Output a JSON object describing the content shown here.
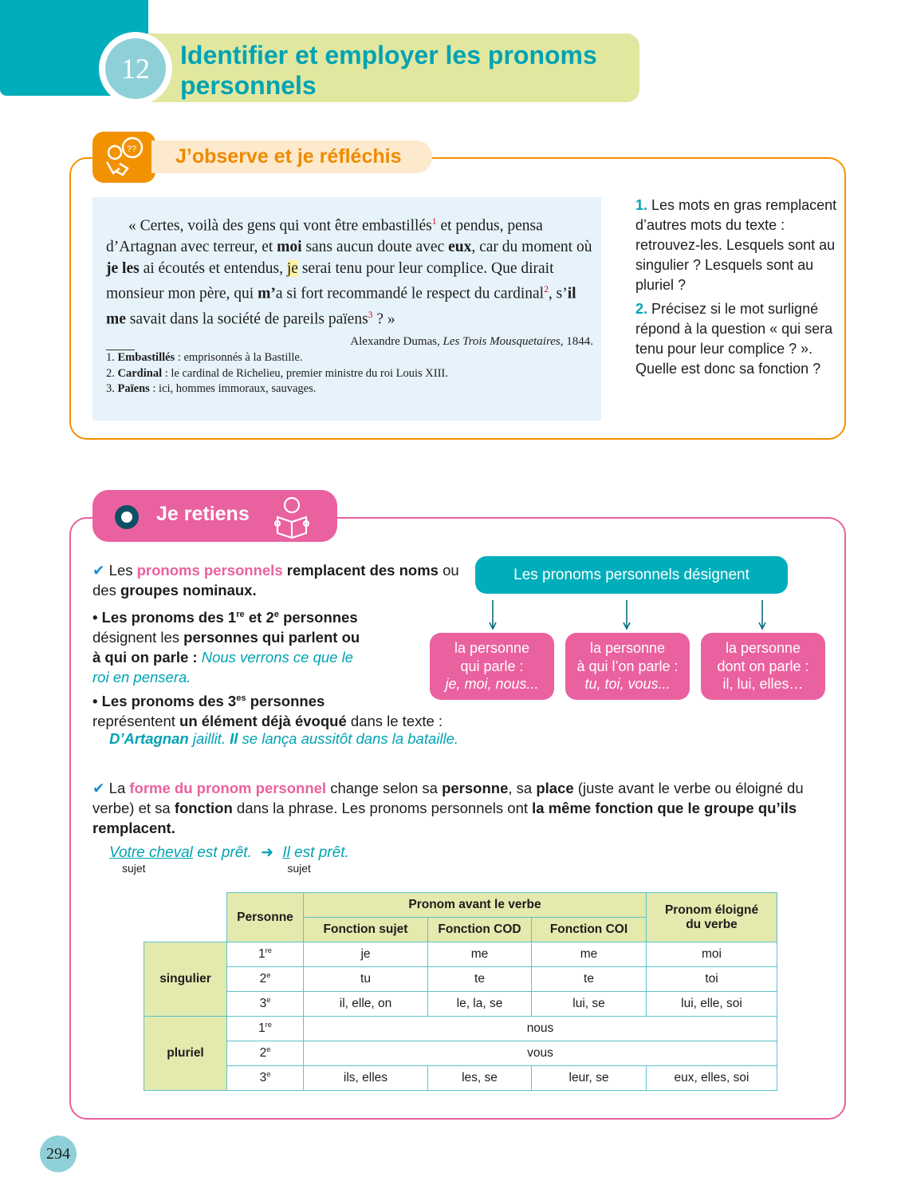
{
  "header": {
    "chapter_number": "12",
    "title": "Identifier et employer les pronoms personnels"
  },
  "observe": {
    "label": "J’observe et je réfléchis",
    "icon": "thinking-person-icon",
    "quote": [
      {
        "t": "« Certes, voilà des gens qui vont être embastillés"
      },
      {
        "t": "1",
        "s": "supr"
      },
      {
        "t": " et pendus, pensa d’Artagnan avec terreur, et "
      },
      {
        "t": "moi",
        "s": "b"
      },
      {
        "t": " sans aucun doute avec "
      },
      {
        "t": "eux",
        "s": "b"
      },
      {
        "t": ", car du moment où "
      },
      {
        "t": "je les",
        "s": "b"
      },
      {
        "t": " ai écoutés et entendus, "
      },
      {
        "t": "je",
        "s": "hl"
      },
      {
        "t": " serai tenu pour leur complice. Que dirait monsieur mon père, qui "
      },
      {
        "t": "m’",
        "s": "b"
      },
      {
        "t": "a si fort recommandé le respect du cardinal"
      },
      {
        "t": "2",
        "s": "supr"
      },
      {
        "t": ", s’"
      },
      {
        "t": "il me",
        "s": "b"
      },
      {
        "t": " savait dans la société de pareils païens"
      },
      {
        "t": "3",
        "s": "supr"
      },
      {
        "t": " ? »"
      }
    ],
    "source": [
      {
        "t": "Alexandre Dumas, "
      },
      {
        "t": "Les Trois Mousquetaires",
        "s": "i"
      },
      {
        "t": ", 1844."
      }
    ],
    "notes": [
      [
        {
          "t": "1. "
        },
        {
          "t": "Embastillés",
          "s": "b"
        },
        {
          "t": " : emprisonnés à la Bastille."
        }
      ],
      [
        {
          "t": "2. "
        },
        {
          "t": "Cardinal",
          "s": "b"
        },
        {
          "t": " : le cardinal de Richelieu, premier ministre du roi Louis XIII."
        }
      ],
      [
        {
          "t": "3. "
        },
        {
          "t": "Païens",
          "s": "b"
        },
        {
          "t": " : ici, hommes immoraux, sauvages."
        }
      ]
    ],
    "questions": [
      [
        {
          "t": "1.",
          "s": "qn"
        },
        {
          "t": " Les mots en gras remplacent d’autres mots du texte : retrouvez-les. Lesquels sont au singulier ? Lesquels sont au pluriel ?"
        }
      ],
      [
        {
          "t": "2.",
          "s": "qn"
        },
        {
          "t": " Précisez si le mot surligné répond à la question « qui sera tenu pour leur complice ? ». Quelle est donc sa fonction ?"
        }
      ]
    ]
  },
  "retiens": {
    "label": "Je retiens",
    "icon": "reading-person-icon",
    "p1": [
      {
        "t": "✔",
        "s": "ck"
      },
      {
        "t": " Les "
      },
      {
        "t": "pronoms personnels",
        "s": "pk"
      },
      {
        "t": " remplacent des noms",
        "s": "b"
      },
      {
        "t": " ou des "
      },
      {
        "t": "groupes nominaux.",
        "s": "b"
      }
    ],
    "p2": [
      {
        "t": "• Les pronoms des 1",
        "s": "b"
      },
      {
        "t": "re",
        "s": "supb"
      },
      {
        "t": " et 2",
        "s": "b"
      },
      {
        "t": "e",
        "s": "supb"
      },
      {
        "t": " personnes",
        "s": "b"
      },
      {
        "t": " désignent les "
      },
      {
        "t": "personnes qui parlent ou à qui on parle",
        "s": "b"
      },
      {
        "t": " : ",
        "s": "b"
      },
      {
        "t": "Nous verrons ce que le roi en pensera.",
        "s": "tq"
      }
    ],
    "p3": [
      {
        "t": "• Les pronoms des 3",
        "s": "b"
      },
      {
        "t": "es",
        "s": "supb"
      },
      {
        "t": " personnes",
        "s": "b"
      },
      {
        "t": "\nreprésentent "
      },
      {
        "t": "un élément déjà évoqué",
        "s": "b"
      },
      {
        "t": " dans le texte :"
      }
    ],
    "p3_example": [
      {
        "t": "D’Artagnan",
        "s": "tqb"
      },
      {
        "t": " jaillit. ",
        "s": "tq"
      },
      {
        "t": "Il",
        "s": "tqb"
      },
      {
        "t": " se lança aussitôt  dans la bataille.",
        "s": "tq"
      }
    ],
    "p4": [
      {
        "t": "✔",
        "s": "ck"
      },
      {
        "t": " La "
      },
      {
        "t": "forme du pronom personnel",
        "s": "pk"
      },
      {
        "t": " change selon sa "
      },
      {
        "t": "personne",
        "s": "b"
      },
      {
        "t": ", sa "
      },
      {
        "t": "place",
        "s": "b"
      },
      {
        "t": " (juste avant le verbe ou éloigné du verbe) et sa "
      },
      {
        "t": "fonction",
        "s": "b"
      },
      {
        "t": " dans la phrase. Les pronoms personnels ont "
      },
      {
        "t": "la même fonction que le groupe qu’ils remplacent.",
        "s": "b"
      }
    ],
    "example": {
      "left": "Votre cheval",
      "left_rest": " est prêt.",
      "right": "Il",
      "right_rest": " est prêt.",
      "left_sub": "sujet",
      "right_sub": "sujet"
    },
    "flow": {
      "top": "Les pronoms personnels désignent",
      "boxes": [
        {
          "l1": "la personne",
          "l2": "qui parle :",
          "l3": "je, moi, nous..."
        },
        {
          "l1": "la personne",
          "l2": "à qui l’on parle :",
          "l3": "tu, toi, vous..."
        },
        {
          "l1": "la personne",
          "l2": "dont on parle :",
          "l3": "il, lui, elles…"
        }
      ]
    },
    "table": {
      "h_personne": "Personne",
      "h_avant": "Pronom avant le verbe",
      "h_eloigne": "Pronom éloigné du verbe",
      "h_sujet": "Fonction sujet",
      "h_cod": "Fonction COD",
      "h_coi": "Fonction COI",
      "singulier": "singulier",
      "pluriel": "pluriel",
      "rows": [
        {
          "p": "1",
          "sup": "re",
          "cells": [
            "je",
            "me",
            "me",
            "moi"
          ]
        },
        {
          "p": "2",
          "sup": "e",
          "cells": [
            "tu",
            "te",
            "te",
            "toi"
          ]
        },
        {
          "p": "3",
          "sup": "e",
          "cells": [
            "il, elle, on",
            "le, la, se",
            "lui, se",
            "lui, elle, soi"
          ]
        },
        {
          "p": "1",
          "sup": "re",
          "merged": "nous"
        },
        {
          "p": "2",
          "sup": "e",
          "merged": "vous"
        },
        {
          "p": "3",
          "sup": "e",
          "cells": [
            "ils, elles",
            "les, se",
            "leur, se",
            "eux, elles, soi"
          ]
        }
      ]
    }
  },
  "page_number": "294",
  "colors": {
    "teal": "#00aebb",
    "orange": "#f39200",
    "pink": "#ea619f",
    "green": "#e1e79f"
  }
}
